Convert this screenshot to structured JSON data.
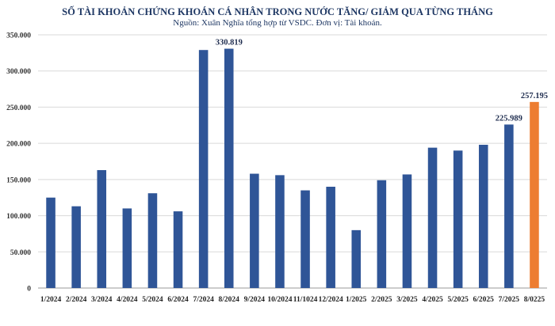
{
  "chart_data": {
    "type": "bar",
    "title": "SỐ TÀI KHOẢN CHỨNG KHOÁN CÁ NHÂN TRONG NƯỚC TĂNG/ GIẢM QUA TỪNG THÁNG",
    "subtitle": "Nguồn: Xuân Nghĩa tổng hợp từ VSDC. Đơn vị: Tài khoản.",
    "xlabel": "",
    "ylabel": "",
    "ylim": [
      0,
      350000
    ],
    "yticks": [
      0,
      50000,
      100000,
      150000,
      200000,
      250000,
      300000,
      350000
    ],
    "ytick_labels": [
      "0",
      "50.000",
      "100.000",
      "150.000",
      "200.000",
      "250.000",
      "300.000",
      "350.000"
    ],
    "grid": true,
    "categories": [
      "1/2024",
      "2/2024",
      "3/2024",
      "4/2024",
      "5/2024",
      "6/2024",
      "7/2024",
      "8/2024",
      "9/2024",
      "10/2024",
      "11/1024",
      "12/2024",
      "1/2025",
      "2/2025",
      "3/2025",
      "4/2025",
      "5/2025",
      "6/2025",
      "7/2025",
      "8/0225"
    ],
    "values": [
      125000,
      113000,
      163000,
      110000,
      131000,
      106000,
      329000,
      330819,
      158000,
      156000,
      135000,
      140000,
      80000,
      149000,
      157000,
      194000,
      190000,
      198000,
      225989,
      257195
    ],
    "colors": [
      "#2f5597",
      "#2f5597",
      "#2f5597",
      "#2f5597",
      "#2f5597",
      "#2f5597",
      "#2f5597",
      "#2f5597",
      "#2f5597",
      "#2f5597",
      "#2f5597",
      "#2f5597",
      "#2f5597",
      "#2f5597",
      "#2f5597",
      "#2f5597",
      "#2f5597",
      "#2f5597",
      "#2f5597",
      "#ed7d31"
    ],
    "data_labels": [
      "",
      "",
      "",
      "",
      "",
      "",
      "",
      "330.819",
      "",
      "",
      "",
      "",
      "",
      "",
      "",
      "",
      "",
      "",
      "225.989",
      "257.195"
    ]
  }
}
